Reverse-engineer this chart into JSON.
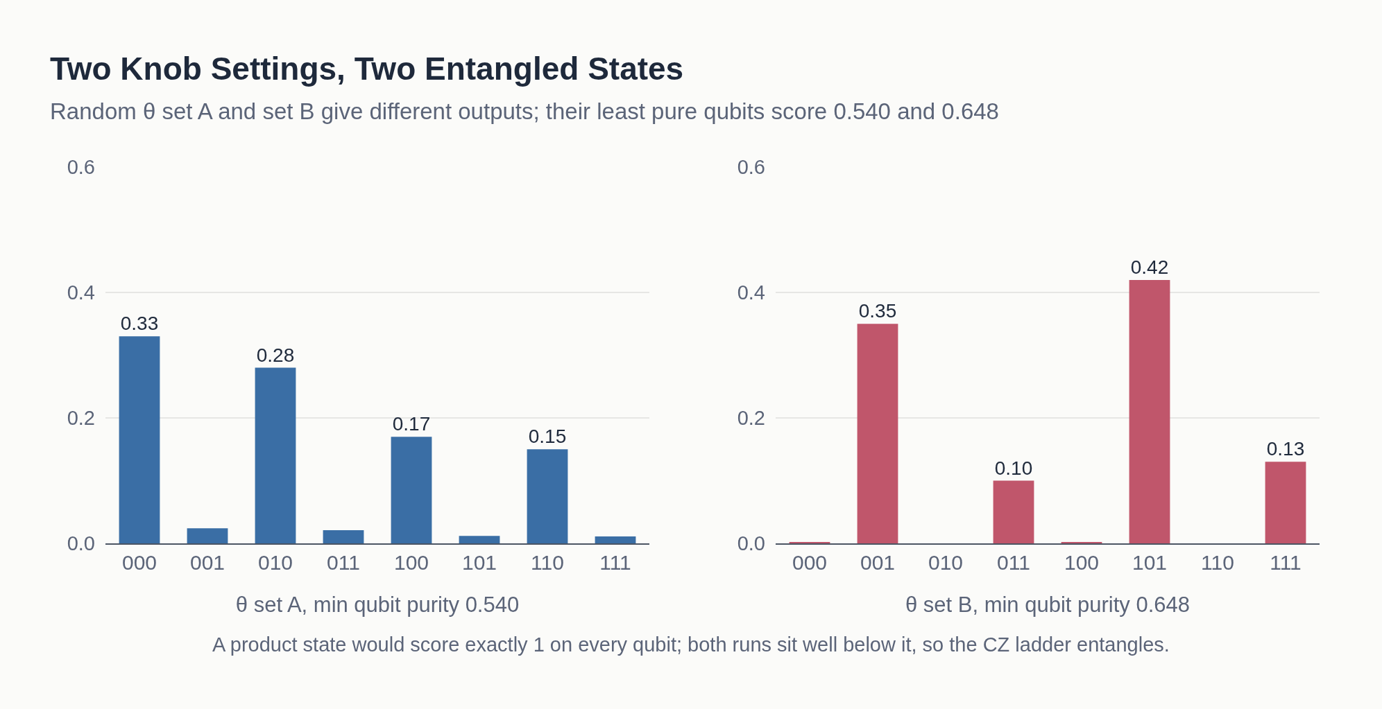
{
  "chart_data": [
    {
      "type": "bar",
      "title": "Two Knob Settings, Two Entangled States",
      "subtitle": "Random θ set A and set B give different outputs; their least pure qubits score 0.540 and 0.648",
      "xlabel": "θ set A, min qubit purity 0.540",
      "annotations": [
        "A product state would score exactly 1 on every qubit; both runs sit well below it, so the CZ ladder entangles."
      ],
      "categories": [
        "000",
        "001",
        "010",
        "011",
        "100",
        "101",
        "110",
        "111"
      ],
      "values": [
        0.33,
        0.024,
        0.28,
        0.021,
        0.17,
        0.012,
        0.15,
        0.011
      ],
      "value_labels": [
        "0.33",
        null,
        "0.28",
        null,
        "0.17",
        null,
        "0.15",
        null
      ],
      "color": "#3a6ea5",
      "ylim": [
        0,
        0.6
      ],
      "yticks": [
        {
          "value": 0,
          "label": "0.0"
        },
        0.2,
        0.4,
        0.6
      ],
      "grid": "y"
    },
    {
      "type": "bar",
      "xlabel": "θ set B, min qubit purity 0.648",
      "categories": [
        "000",
        "001",
        "010",
        "011",
        "100",
        "101",
        "110",
        "111"
      ],
      "values": [
        0.002,
        0.35,
        0,
        0.1,
        0.002,
        0.42,
        0,
        0.13
      ],
      "value_labels": [
        null,
        "0.35",
        null,
        "0.10",
        null,
        "0.42",
        null,
        "0.13"
      ],
      "color": "#c0566b",
      "ylim": [
        0,
        0.6
      ],
      "yticks": [
        {
          "value": 0,
          "label": "0.0"
        },
        0.2,
        0.4,
        0.6
      ],
      "grid": "y"
    }
  ]
}
